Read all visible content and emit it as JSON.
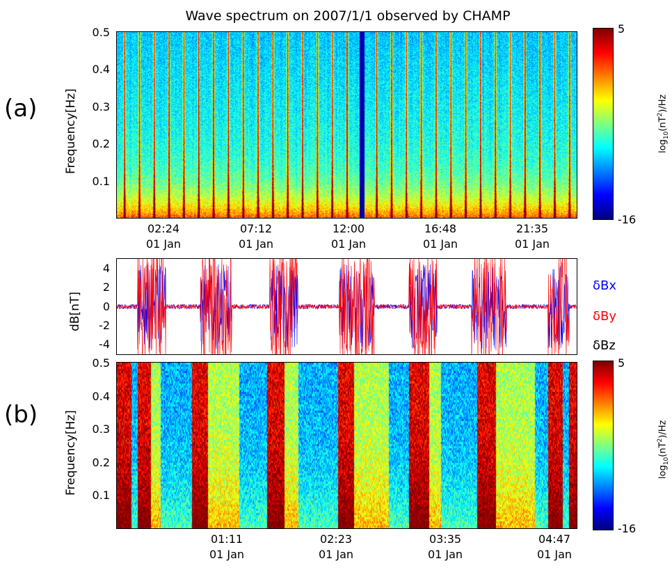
{
  "chart_data": [
    {
      "type": "heatmap",
      "panel_label": "(a)",
      "title": "Wave spectrum on 2007/1/1 observed by CHAMP",
      "ylabel": "Frequency[Hz]",
      "yticks": [
        "0.5",
        "0.4",
        "0.3",
        "0.2",
        "0.1"
      ],
      "xticks": [
        {
          "time": "02:24",
          "date": "01 Jan"
        },
        {
          "time": "07:12",
          "date": "01 Jan"
        },
        {
          "time": "12:00",
          "date": "01 Jan"
        },
        {
          "time": "16:48",
          "date": "01 Jan"
        },
        {
          "time": "21:35",
          "date": "01 Jan"
        }
      ],
      "ylim": [
        0,
        0.5
      ],
      "colorbar": {
        "label": "log10(nT²)/Hz",
        "max": "5",
        "min": "-16",
        "colormap": "jet"
      }
    },
    {
      "type": "line",
      "ylabel": "dB[nT]",
      "yticks": [
        "4",
        "2",
        "0",
        "-2",
        "-4"
      ],
      "ylim": [
        -5,
        5
      ],
      "legend": [
        {
          "name": "δBx",
          "color": "#0000ff"
        },
        {
          "name": "δBy",
          "color": "#ff0000"
        },
        {
          "name": "δBz",
          "color": "#000000"
        }
      ]
    },
    {
      "type": "heatmap",
      "panel_label": "(b)",
      "ylabel": "Frequency[Hz]",
      "yticks": [
        "0.5",
        "0.4",
        "0.3",
        "0.2",
        "0.1"
      ],
      "xticks": [
        {
          "time": "01:11",
          "date": "01 Jan"
        },
        {
          "time": "02:23",
          "date": "01 Jan"
        },
        {
          "time": "03:35",
          "date": "01 Jan"
        },
        {
          "time": "04:47",
          "date": "01 Jan"
        }
      ],
      "ylim": [
        0,
        0.5
      ],
      "colorbar": {
        "label": "log10(nT²)/Hz",
        "max": "5",
        "min": "-16",
        "colormap": "jet"
      }
    }
  ]
}
